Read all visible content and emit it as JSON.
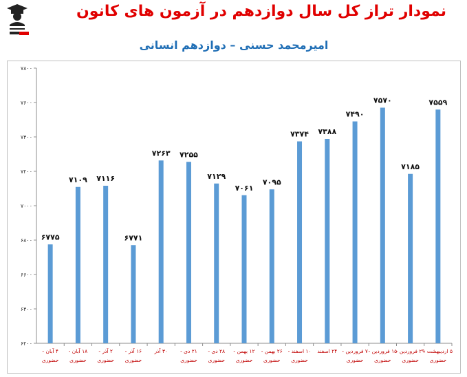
{
  "header": {
    "title": "نمودار تراز کل سال دوازدهم در آزمون های کانون",
    "subtitle": "امیرمحمد حسنی – دوازدهم انسانی",
    "logo_icon": "graduate-logo-icon"
  },
  "colors": {
    "bar": "#5b9bd5",
    "title": "#e00000",
    "subtitle": "#1f6eb5",
    "xlabel": "#c00000"
  },
  "chart_data": {
    "type": "bar",
    "title": "نمودار تراز کل سال دوازدهم در آزمون های کانون",
    "subtitle": "امیرمحمد حسنی – دوازدهم انسانی",
    "xlabel": "",
    "ylabel": "",
    "ylim": [
      6200,
      7800
    ],
    "yticks": [
      6200,
      6400,
      6600,
      6800,
      7000,
      7200,
      7400,
      7600,
      7800
    ],
    "ytick_labels": [
      "۶۲۰۰",
      "۶۴۰۰",
      "۶۶۰۰",
      "۶۸۰۰",
      "۷۰۰۰",
      "۷۲۰۰",
      "۷۴۰۰",
      "۷۶۰۰",
      "۷۸۰۰"
    ],
    "grid": false,
    "legend": "none",
    "categories": [
      [
        "۴ آبان -",
        "حضوری"
      ],
      [
        "۱۸ آبان -",
        "حضوری"
      ],
      [
        "۲ آذر -",
        "حضوری"
      ],
      [
        "۱۶ آذر -",
        "حضوری"
      ],
      [
        "۳۰ آذر",
        ""
      ],
      [
        "۲۱ دی -",
        "حضوری"
      ],
      [
        "۲۸ دی -",
        "حضوری"
      ],
      [
        "۱۲ بهمن -",
        "حضوری"
      ],
      [
        "۲۶ بهمن -",
        "حضوری"
      ],
      [
        "۱۰ اسفند -",
        "حضوری"
      ],
      [
        "۲۴ اسفند",
        ""
      ],
      [
        "۷ فروردین -",
        "حضوری"
      ],
      [
        "۱۵ فروردین -",
        "حضوری"
      ],
      [
        "۲۹ فروردین -",
        "حضوری"
      ],
      [
        "۵ اردیبهشت -",
        "حضوری"
      ]
    ],
    "values": [
      6775,
      7109,
      7116,
      6771,
      7263,
      7255,
      7129,
      7061,
      7095,
      7374,
      7388,
      7490,
      7570,
      7185,
      7559
    ],
    "value_labels": [
      "۶۷۷۵",
      "۷۱۰۹",
      "۷۱۱۶",
      "۶۷۷۱",
      "۷۲۶۳",
      "۷۲۵۵",
      "۷۱۲۹",
      "۷۰۶۱",
      "۷۰۹۵",
      "۷۳۷۴",
      "۷۳۸۸",
      "۷۴۹۰",
      "۷۵۷۰",
      "۷۱۸۵",
      "۷۵۵۹"
    ]
  }
}
